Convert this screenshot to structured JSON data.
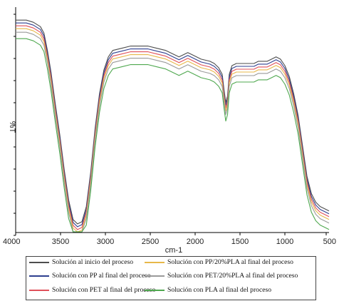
{
  "chart_data": {
    "type": "line",
    "title": "",
    "xlabel": "cm-1",
    "ylabel": "%T",
    "xlim": [
      4000,
      450
    ],
    "ylim": [
      0,
      100
    ],
    "x_reversed": true,
    "x_ticks": [
      "4000",
      "3500",
      "3000",
      "2500",
      "2000",
      "1500",
      "1000",
      "500"
    ],
    "legend_position": "bottom",
    "grid": false,
    "series": [
      {
        "name": "Solución al inicio del proceso",
        "color": "#4d4d4d",
        "offset": 0
      },
      {
        "name": "Solución con PP al final del proceso",
        "color": "#2e3f8f",
        "offset": 4
      },
      {
        "name": "Solución con PET al final del proceso",
        "color": "#e0505a",
        "offset": 8
      },
      {
        "name": "Solución con PP/20%PLA al final del proceso",
        "color": "#e8b84a",
        "offset": 12
      },
      {
        "name": "Solución con PET/20%PLA al final del proceso",
        "color": "#9a9a9a",
        "offset": 17
      },
      {
        "name": "Solución con PLA al final del proceso",
        "color": "#4fa84f",
        "offset": 26
      }
    ],
    "base_profile": [
      [
        4000,
        96
      ],
      [
        3880,
        96
      ],
      [
        3800,
        95
      ],
      [
        3720,
        93
      ],
      [
        3680,
        90
      ],
      [
        3640,
        82
      ],
      [
        3600,
        72
      ],
      [
        3550,
        57
      ],
      [
        3500,
        43
      ],
      [
        3450,
        27
      ],
      [
        3400,
        13
      ],
      [
        3350,
        4
      ],
      [
        3300,
        2
      ],
      [
        3250,
        3
      ],
      [
        3200,
        10
      ],
      [
        3150,
        26
      ],
      [
        3100,
        46
      ],
      [
        3050,
        62
      ],
      [
        3000,
        73
      ],
      [
        2950,
        79
      ],
      [
        2900,
        82
      ],
      [
        2800,
        83
      ],
      [
        2700,
        84
      ],
      [
        2600,
        84
      ],
      [
        2500,
        84
      ],
      [
        2400,
        83
      ],
      [
        2300,
        82
      ],
      [
        2200,
        80
      ],
      [
        2150,
        79
      ],
      [
        2100,
        80
      ],
      [
        2050,
        81
      ],
      [
        2000,
        80
      ],
      [
        1900,
        78
      ],
      [
        1800,
        77
      ],
      [
        1750,
        76
      ],
      [
        1700,
        74
      ],
      [
        1660,
        71
      ],
      [
        1640,
        64
      ],
      [
        1620,
        58
      ],
      [
        1600,
        61
      ],
      [
        1580,
        71
      ],
      [
        1550,
        75
      ],
      [
        1500,
        76
      ],
      [
        1400,
        76
      ],
      [
        1300,
        76
      ],
      [
        1250,
        77
      ],
      [
        1200,
        77
      ],
      [
        1150,
        77
      ],
      [
        1100,
        78
      ],
      [
        1050,
        79
      ],
      [
        1000,
        78
      ],
      [
        950,
        75
      ],
      [
        900,
        70
      ],
      [
        850,
        62
      ],
      [
        800,
        52
      ],
      [
        750,
        38
      ],
      [
        700,
        24
      ],
      [
        650,
        16
      ],
      [
        600,
        12
      ],
      [
        550,
        10
      ],
      [
        500,
        9
      ],
      [
        450,
        8
      ]
    ]
  }
}
